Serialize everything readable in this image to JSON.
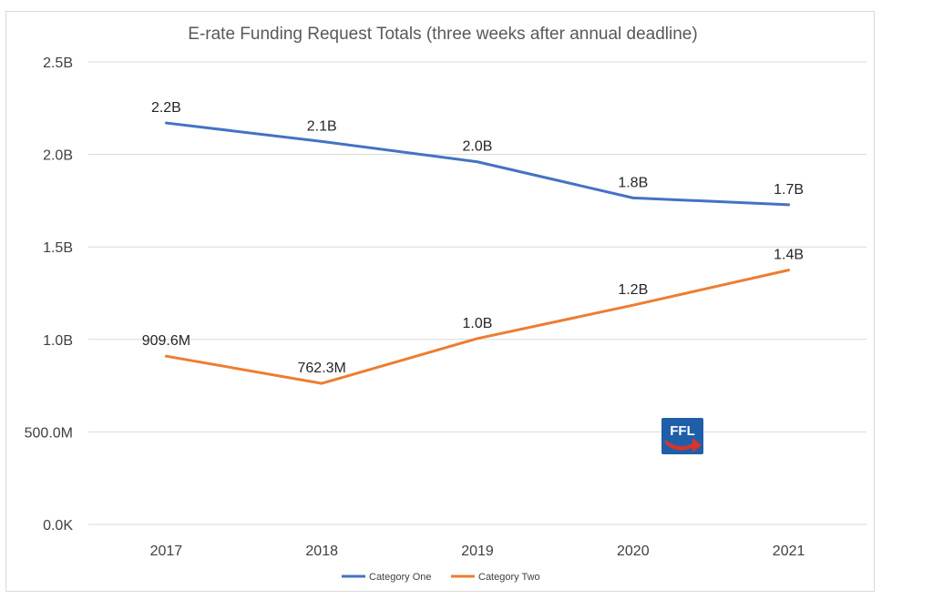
{
  "chart_data": {
    "type": "line",
    "title": "E-rate Funding Request Totals (three weeks after annual deadline)",
    "categories": [
      "2017",
      "2018",
      "2019",
      "2020",
      "2021"
    ],
    "ylim": [
      0,
      2500000000
    ],
    "yticks": [
      {
        "value": 0,
        "label": "0.0K"
      },
      {
        "value": 500000000,
        "label": "500.0M"
      },
      {
        "value": 1000000000,
        "label": "1.0B"
      },
      {
        "value": 1500000000,
        "label": "1.5B"
      },
      {
        "value": 2000000000,
        "label": "2.0B"
      },
      {
        "value": 2500000000,
        "label": "2.5B"
      }
    ],
    "grid": true,
    "legend": "bottom",
    "series": [
      {
        "name": "Category One",
        "color": "#4472c4",
        "values": [
          2170000000,
          2070000000,
          1960000000,
          1765000000,
          1728000000
        ],
        "labels": [
          "2.2B",
          "2.1B",
          "2.0B",
          "1.8B",
          "1.7B"
        ]
      },
      {
        "name": "Category Two",
        "color": "#ed7d31",
        "values": [
          909600000,
          762300000,
          1005000000,
          1185000000,
          1375000000
        ],
        "labels": [
          "909.6M",
          "762.3M",
          "1.0B",
          "1.2B",
          "1.4B"
        ]
      }
    ]
  },
  "logo": {
    "text": "FFL",
    "colors": {
      "background": "#1f5fa8",
      "arrow": "#d9342b"
    }
  }
}
